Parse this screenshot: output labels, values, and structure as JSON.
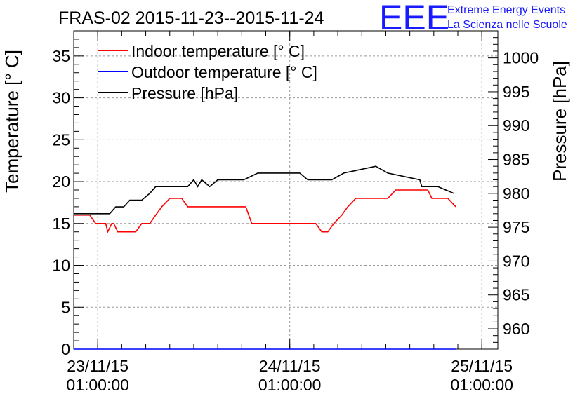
{
  "header": {
    "title": "FRAS-02 2015-11-23--2015-11-24",
    "logo_text": "EEE",
    "logo_line1": "Extreme Energy Events",
    "logo_line2": "La Scienza nelle Scuole"
  },
  "colors": {
    "indoor": "#ff0000",
    "outdoor": "#0000ff",
    "pressure": "#000000",
    "logo": "#1a1aff",
    "grid": "#999999"
  },
  "chart_data": {
    "type": "line",
    "title": "FRAS-02 2015-11-23--2015-11-24",
    "xlabel": "",
    "ylabel": "Temperature [° C]",
    "y2label": "Pressure [hPa]",
    "xlim": [
      "2015-11-22 22:00",
      "2015-11-25 03:00"
    ],
    "ylim": [
      0,
      38
    ],
    "y2lim": [
      957,
      1004
    ],
    "grid": true,
    "legend_position": "top-left",
    "x_ticks": [
      {
        "x": "2015-11-23 01:00",
        "date": "23/11/15",
        "time": "01:00:00"
      },
      {
        "x": "2015-11-24 01:00",
        "date": "24/11/15",
        "time": "01:00:00"
      },
      {
        "x": "2015-11-25 01:00",
        "date": "25/11/15",
        "time": "01:00:00"
      }
    ],
    "y_ticks": [
      "0",
      "5",
      "10",
      "15",
      "20",
      "25",
      "30",
      "35"
    ],
    "y2_ticks": [
      "960",
      "965",
      "970",
      "975",
      "980",
      "985",
      "990",
      "995",
      "1000"
    ],
    "series": [
      {
        "name": "Indoor temperature [° C]",
        "axis": "left",
        "x": [
          "2015-11-22 22:00",
          "2015-11-23 00:00",
          "2015-11-23 00:45",
          "2015-11-23 02:00",
          "2015-11-23 02:15",
          "2015-11-23 02:45",
          "2015-11-23 03:00",
          "2015-11-23 03:30",
          "2015-11-23 05:45",
          "2015-11-23 06:30",
          "2015-11-23 07:30",
          "2015-11-23 08:15",
          "2015-11-23 09:00",
          "2015-11-23 10:00",
          "2015-11-23 11:30",
          "2015-11-23 12:15",
          "2015-11-23 19:30",
          "2015-11-23 20:15",
          "2015-11-24 04:15",
          "2015-11-24 05:00",
          "2015-11-24 05:45",
          "2015-11-24 06:30",
          "2015-11-24 07:30",
          "2015-11-24 08:15",
          "2015-11-24 09:15",
          "2015-11-24 10:15",
          "2015-11-24 13:15",
          "2015-11-24 14:15",
          "2015-11-24 18:15",
          "2015-11-24 18:45",
          "2015-11-24 19:15",
          "2015-11-24 20:45",
          "2015-11-24 21:45"
        ],
        "values": [
          16,
          16,
          15,
          15,
          14,
          15,
          15,
          14,
          14,
          15,
          15,
          16,
          17,
          18,
          18,
          17,
          17,
          15,
          15,
          14,
          14,
          15,
          16,
          17,
          18,
          18,
          18,
          19,
          19,
          18,
          18,
          18,
          17
        ]
      },
      {
        "name": "Outdoor temperature [° C]",
        "axis": "left",
        "x": [
          "2015-11-22 22:00",
          "2015-11-24 21:45"
        ],
        "values": [
          0,
          0
        ]
      },
      {
        "name": "Pressure [hPa]",
        "axis": "right",
        "x": [
          "2015-11-22 22:00",
          "2015-11-23 02:30",
          "2015-11-23 03:15",
          "2015-11-23 04:15",
          "2015-11-23 05:00",
          "2015-11-23 06:30",
          "2015-11-23 07:30",
          "2015-11-23 08:15",
          "2015-11-23 12:15",
          "2015-11-23 13:00",
          "2015-11-23 13:30",
          "2015-11-23 14:00",
          "2015-11-23 15:00",
          "2015-11-23 16:00",
          "2015-11-23 19:15",
          "2015-11-23 21:00",
          "2015-11-24 02:15",
          "2015-11-24 03:15",
          "2015-11-24 06:15",
          "2015-11-24 07:45",
          "2015-11-24 11:45",
          "2015-11-24 13:15",
          "2015-11-24 17:15",
          "2015-11-24 17:30",
          "2015-11-24 19:30",
          "2015-11-24 21:30"
        ],
        "values": [
          977,
          977,
          978,
          978,
          979,
          979,
          980,
          981,
          981,
          982,
          981,
          982,
          981,
          982,
          982,
          983,
          983,
          982,
          982,
          983,
          984,
          983,
          982,
          981,
          981,
          980
        ]
      }
    ]
  }
}
